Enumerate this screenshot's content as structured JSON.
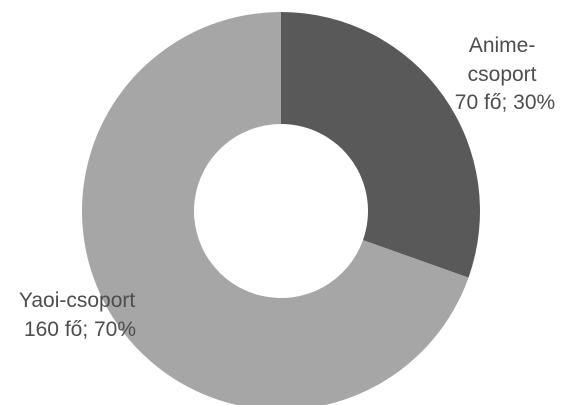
{
  "chart_data": {
    "type": "pie",
    "variant": "donut",
    "title": "",
    "slices": [
      {
        "label_lines": [
          "Anime-",
          "csoport",
          "70 fő; 30%"
        ],
        "category": "Anime-csoport",
        "value": 70,
        "unit": "fő",
        "percent": 30,
        "color": "#595959"
      },
      {
        "label_lines": [
          "Yaoi-csoport",
          "160 fő; 70%"
        ],
        "category": "Yaoi-csoport",
        "value": 160,
        "unit": "fő",
        "percent": 70,
        "color": "#a6a6a6"
      }
    ],
    "legend": "none",
    "start_angle_deg": 0,
    "direction": "clockwise"
  }
}
